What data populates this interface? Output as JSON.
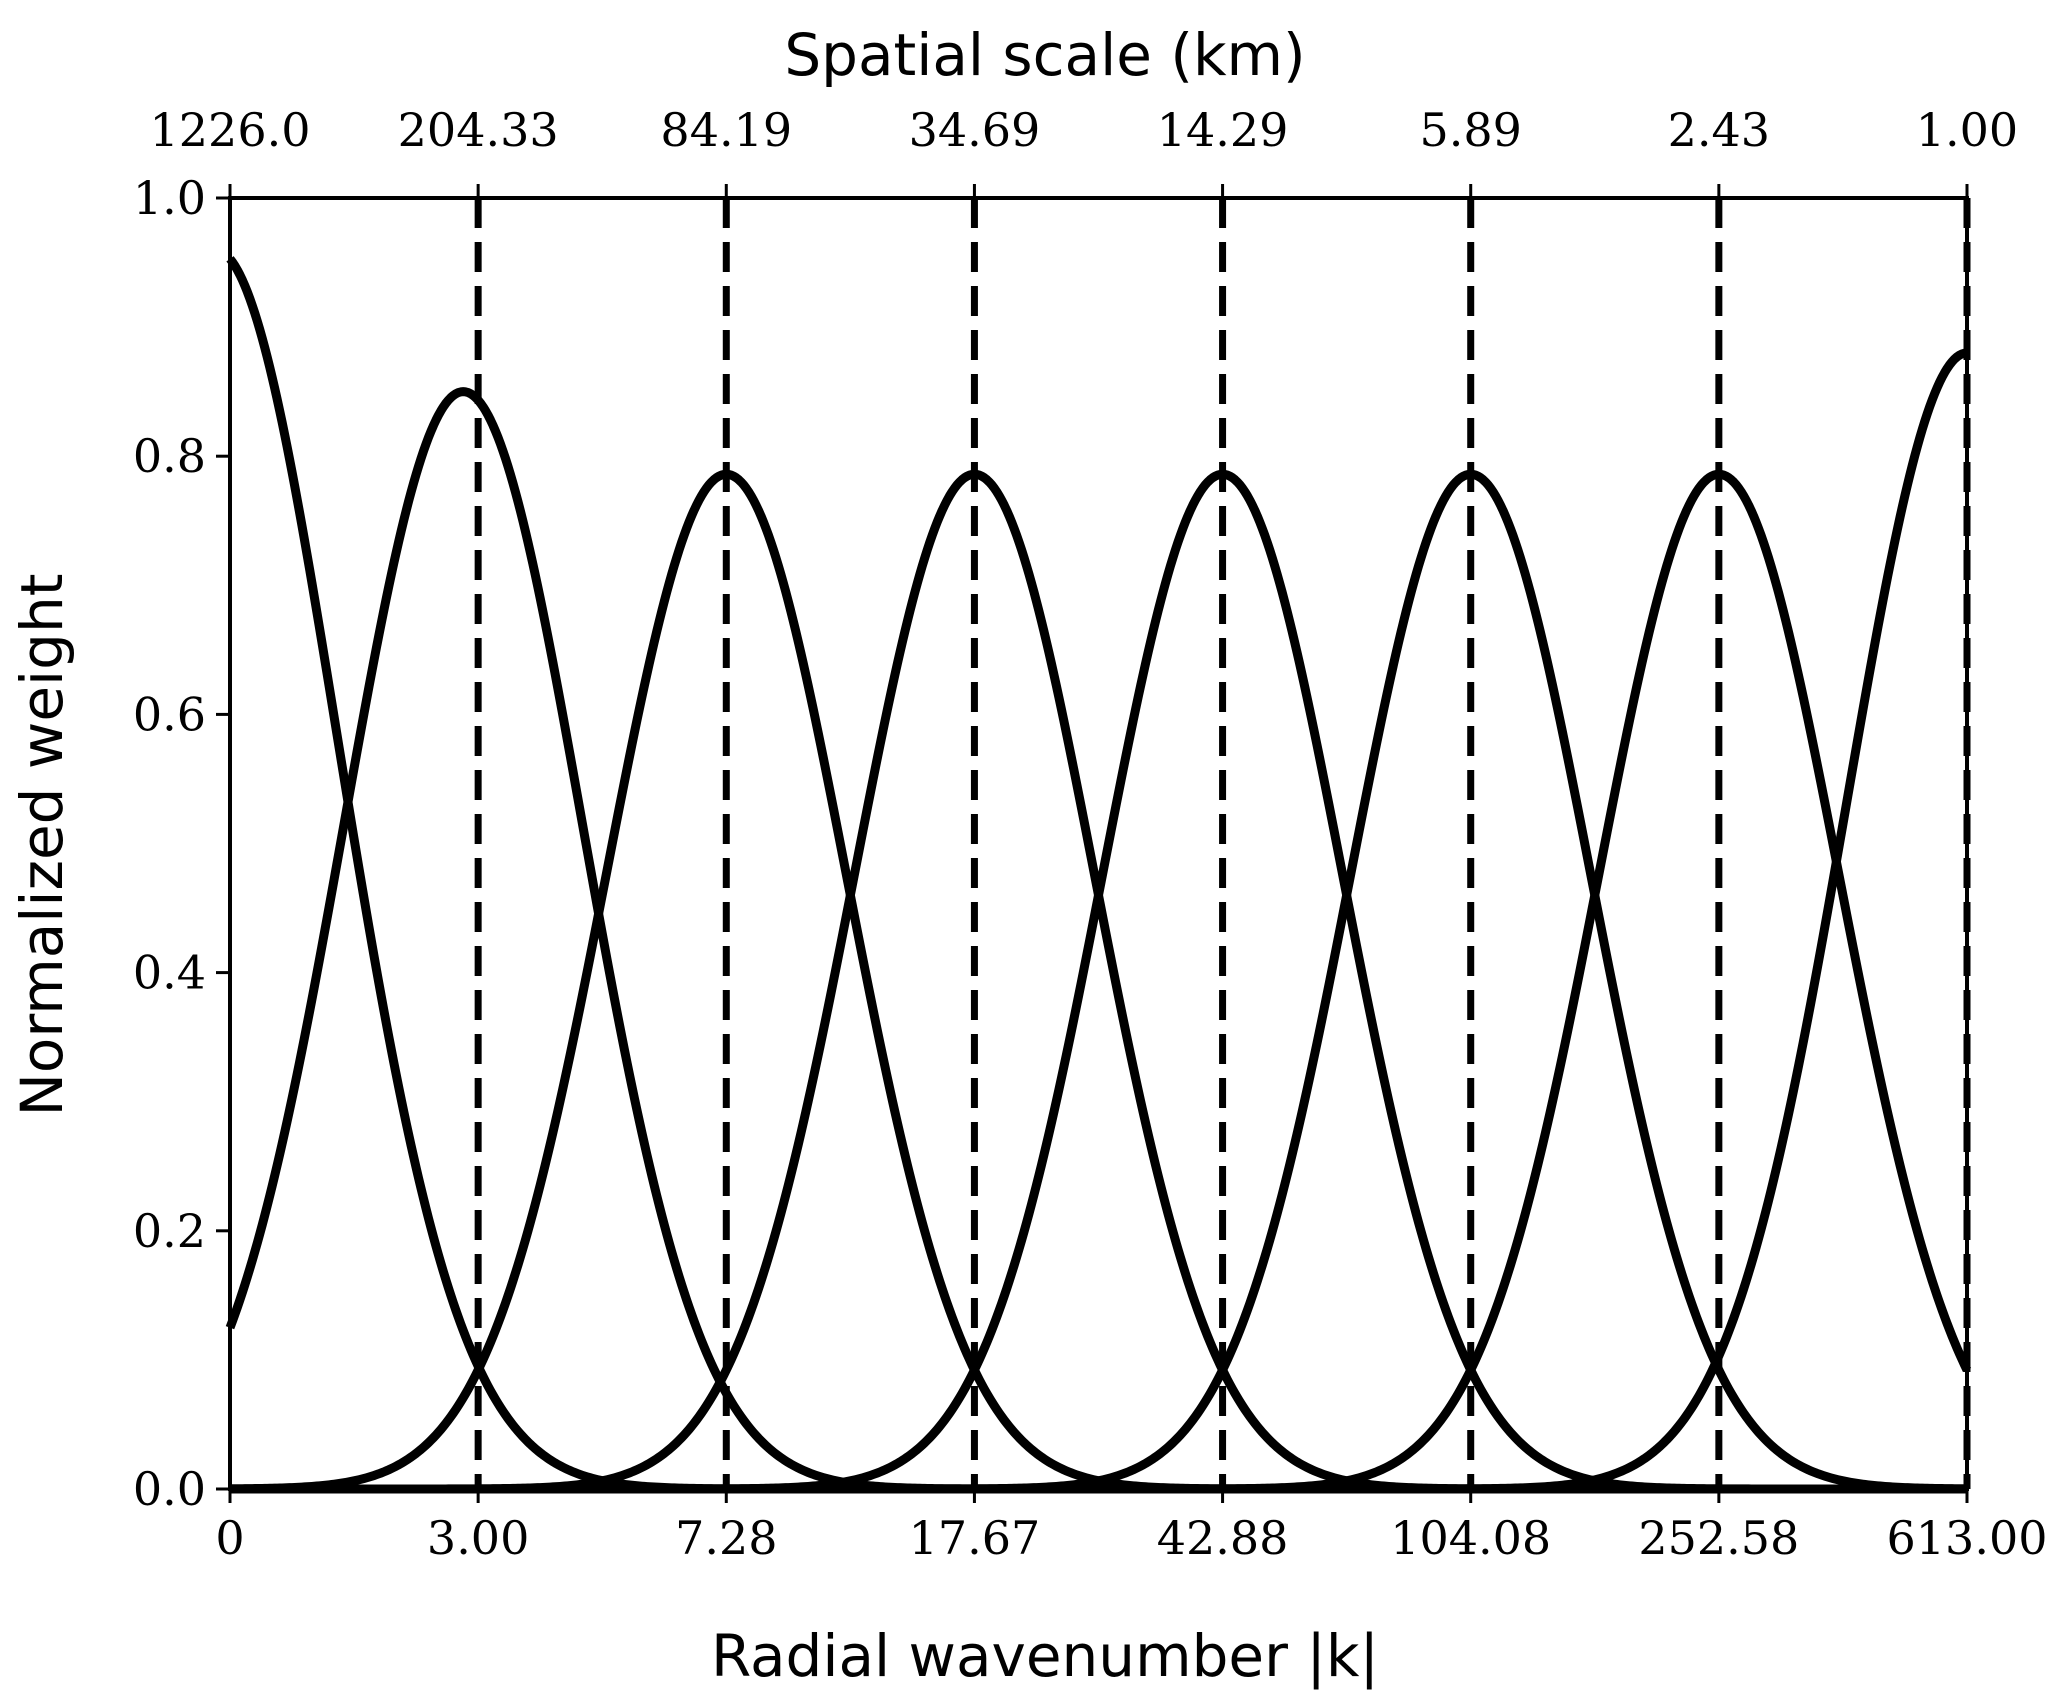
{
  "chart_data": {
    "type": "line",
    "xlabel": "Radial wavenumber |k|",
    "ylabel": "Normalized weight",
    "top_xlabel": "Spatial scale (km)",
    "y_ticks": [
      "0.0",
      "0.2",
      "0.4",
      "0.6",
      "0.8",
      "1.0"
    ],
    "y_tick_values": [
      0.0,
      0.2,
      0.4,
      0.6,
      0.8,
      1.0
    ],
    "ylim": [
      0.0,
      1.0
    ],
    "x_ticks_bottom": [
      "0",
      "3.00",
      "7.28",
      "17.67",
      "42.88",
      "104.08",
      "252.58",
      "613.00"
    ],
    "x_ticks_top": [
      "1226.0",
      "204.33",
      "84.19",
      "34.69",
      "14.29",
      "5.89",
      "2.43",
      "1.00"
    ],
    "x_tick_index": [
      0,
      1,
      2,
      3,
      4,
      5,
      6,
      7
    ],
    "xlim_index": [
      0,
      7
    ],
    "dashed_lines_at_index": [
      1,
      2,
      3,
      4,
      5,
      6,
      7
    ],
    "line_color": "#000000",
    "series": [
      {
        "peak_index": -0.06,
        "peak": 0.96,
        "sigma": 0.493
      },
      {
        "peak_index": 0.94,
        "peak": 0.85,
        "sigma": 0.48
      },
      {
        "peak_index": 2.0,
        "peak": 0.786,
        "sigma": 0.483
      },
      {
        "peak_index": 3.0,
        "peak": 0.786,
        "sigma": 0.483
      },
      {
        "peak_index": 4.0,
        "peak": 0.786,
        "sigma": 0.483
      },
      {
        "peak_index": 5.0,
        "peak": 0.786,
        "sigma": 0.483
      },
      {
        "peak_index": 6.0,
        "peak": 0.786,
        "sigma": 0.483
      },
      {
        "peak_index": 7.0,
        "peak": 0.88,
        "sigma": 0.483
      }
    ]
  }
}
